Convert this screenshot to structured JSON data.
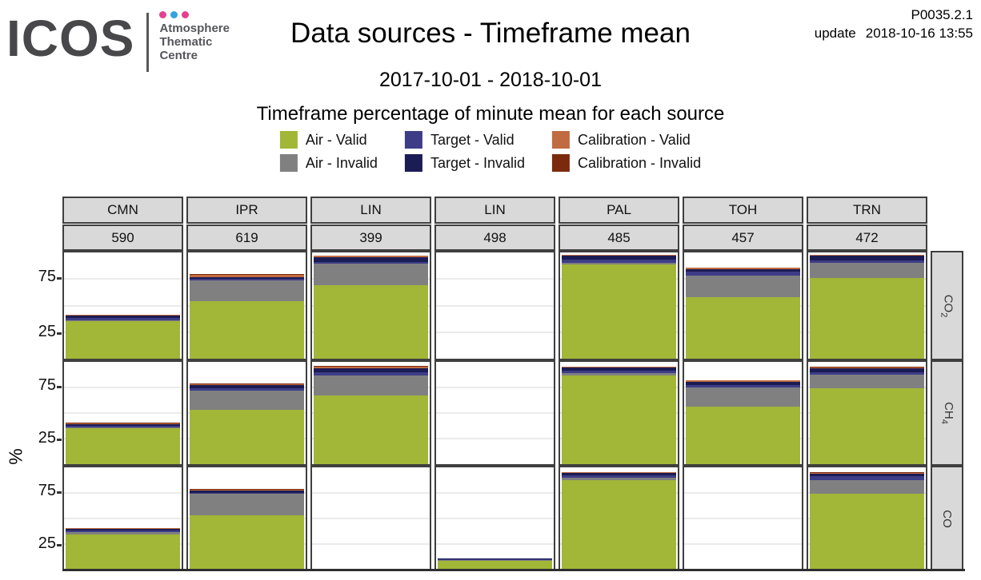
{
  "header": {
    "title": "Data sources - Timeframe mean",
    "date_range": "2017-10-01 - 2018-10-01",
    "version": "P0035.2.1",
    "update_label": "update",
    "update_time": "2018-10-16 13:55"
  },
  "logo": {
    "name": "ICOS",
    "org_lines": [
      "Atmosphere",
      "Thematic",
      "Centre"
    ],
    "dot_colors": [
      "#e5418f",
      "#33a3dc",
      "#e5418f"
    ]
  },
  "legend": {
    "title": "Timeframe percentage of minute mean for each source",
    "items": [
      {
        "label": "Air - Valid",
        "key": "air_valid"
      },
      {
        "label": "Target - Valid",
        "key": "target_valid"
      },
      {
        "label": "Calibration - Valid",
        "key": "cal_valid"
      },
      {
        "label": "Air - Invalid",
        "key": "air_invalid"
      },
      {
        "label": "Target - Invalid",
        "key": "target_invalid"
      },
      {
        "label": "Calibration - Invalid",
        "key": "cal_invalid"
      }
    ]
  },
  "colors": {
    "air_valid": "#a2b637",
    "air_invalid": "#808080",
    "target_valid": "#3d3d87",
    "target_invalid": "#1c1c54",
    "cal_valid": "#c06b41",
    "cal_invalid": "#7c2a0d",
    "panel_border": "#3f3f3f",
    "header_bg": "#d9d9d9",
    "gridline": "#ebebeb"
  },
  "chart_data": {
    "type": "bar",
    "stacked": true,
    "title": "Timeframe percentage of minute mean for each source",
    "ylabel": "%",
    "ylim": [
      0,
      100
    ],
    "yticks": [
      75,
      25
    ],
    "gridlines": [
      25,
      50,
      75
    ],
    "legend_position": "top",
    "stack_order": [
      "air_valid",
      "air_invalid",
      "target_valid",
      "target_invalid",
      "cal_valid",
      "cal_invalid"
    ],
    "columns": [
      {
        "station": "CMN",
        "id": "590"
      },
      {
        "station": "IPR",
        "id": "619"
      },
      {
        "station": "LIN",
        "id": "399"
      },
      {
        "station": "LIN",
        "id": "498"
      },
      {
        "station": "PAL",
        "id": "485"
      },
      {
        "station": "TOH",
        "id": "457"
      },
      {
        "station": "TRN",
        "id": "472"
      }
    ],
    "row_facets": [
      {
        "gas": "CO2",
        "main": "CO",
        "sub": "2"
      },
      {
        "gas": "CH4",
        "main": "CH",
        "sub": "4"
      },
      {
        "gas": "CO",
        "main": "CO",
        "sub": ""
      }
    ],
    "values": [
      [
        {
          "air_valid": 35,
          "air_invalid": 1,
          "target_valid": 2.5,
          "target_invalid": 2,
          "cal_valid": 1,
          "cal_invalid": 0
        },
        {
          "air_valid": 54,
          "air_invalid": 20,
          "target_valid": 1.5,
          "target_invalid": 1.5,
          "cal_valid": 2,
          "cal_invalid": 0.5
        },
        {
          "air_valid": 69,
          "air_invalid": 20.5,
          "target_valid": 1.5,
          "target_invalid": 4.5,
          "cal_valid": 1.5,
          "cal_invalid": 0
        },
        null,
        {
          "air_valid": 88.5,
          "air_invalid": 1.5,
          "target_valid": 3.5,
          "target_invalid": 3.5,
          "cal_valid": 0.5,
          "cal_invalid": 0
        },
        {
          "air_valid": 58,
          "air_invalid": 20.5,
          "target_valid": 3.5,
          "target_invalid": 2.5,
          "cal_valid": 1,
          "cal_invalid": 0
        },
        {
          "air_valid": 76,
          "air_invalid": 14.5,
          "target_valid": 2,
          "target_invalid": 4.5,
          "cal_valid": 1,
          "cal_invalid": 0
        }
      ],
      [
        {
          "air_valid": 35,
          "air_invalid": 1,
          "target_valid": 1.5,
          "target_invalid": 1.5,
          "cal_valid": 1,
          "cal_invalid": 0.5
        },
        {
          "air_valid": 53,
          "air_invalid": 19,
          "target_valid": 2.5,
          "target_invalid": 2.5,
          "cal_valid": 1.5,
          "cal_invalid": 0.5
        },
        {
          "air_valid": 67,
          "air_invalid": 19.5,
          "target_valid": 3.5,
          "target_invalid": 4,
          "cal_valid": 1,
          "cal_invalid": 1
        },
        null,
        {
          "air_valid": 86.5,
          "air_invalid": 2.5,
          "target_valid": 2.5,
          "target_invalid": 3.5,
          "cal_valid": 0.5,
          "cal_invalid": 0
        },
        {
          "air_valid": 56,
          "air_invalid": 19,
          "target_valid": 2.5,
          "target_invalid": 3,
          "cal_valid": 1.5,
          "cal_invalid": 0
        },
        {
          "air_valid": 74.5,
          "air_invalid": 13,
          "target_valid": 2.5,
          "target_invalid": 3.5,
          "cal_valid": 1.5,
          "cal_invalid": 0.5
        }
      ],
      [
        {
          "air_valid": 34.5,
          "air_invalid": 2,
          "target_valid": 1.5,
          "target_invalid": 1.5,
          "cal_valid": 1,
          "cal_invalid": 0
        },
        {
          "air_valid": 53,
          "air_invalid": 21,
          "target_valid": 1,
          "target_invalid": 2,
          "cal_valid": 1.5,
          "cal_invalid": 0.5
        },
        null,
        {
          "air_valid": 8.5,
          "air_invalid": 1.5,
          "target_valid": 0.5,
          "target_invalid": 0.5,
          "cal_valid": 0,
          "cal_invalid": 0
        },
        {
          "air_valid": 87.5,
          "air_invalid": 2,
          "target_valid": 2.5,
          "target_invalid": 3,
          "cal_valid": 0.5,
          "cal_invalid": 0
        },
        null,
        {
          "air_valid": 74,
          "air_invalid": 13.5,
          "target_valid": 4,
          "target_invalid": 2.5,
          "cal_valid": 1,
          "cal_invalid": 0.5
        }
      ]
    ]
  }
}
